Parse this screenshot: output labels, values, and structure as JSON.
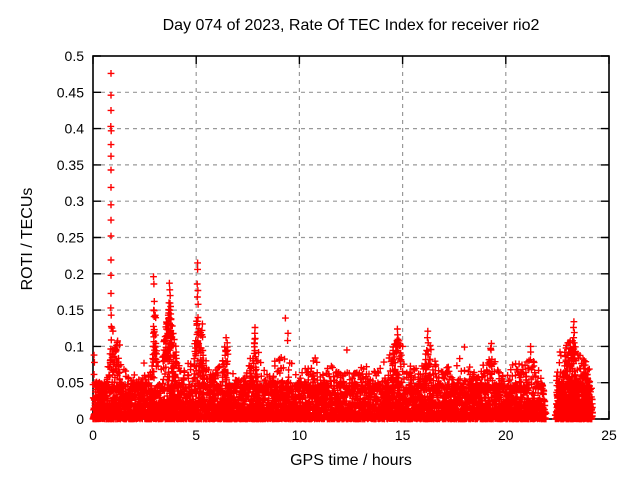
{
  "chart_data": {
    "type": "scatter",
    "title": "Day 074 of 2023, Rate Of TEC Index for receiver rio2",
    "xlabel": "GPS time / hours",
    "ylabel": "ROTI / TECUs",
    "xlim": [
      0,
      25
    ],
    "ylim": [
      0,
      0.5
    ],
    "xticks": {
      "values": [
        0,
        5,
        10,
        15,
        20,
        25
      ],
      "labels": [
        "0",
        "5",
        "10",
        "15",
        "20",
        "25"
      ]
    },
    "yticks": {
      "values": [
        0,
        0.05,
        0.1,
        0.15,
        0.2,
        0.25,
        0.3,
        0.35,
        0.4,
        0.45,
        0.5
      ],
      "labels": [
        "0",
        "0.05",
        "0.1",
        "0.15",
        "0.2",
        "0.25",
        "0.3",
        "0.35",
        "0.4",
        "0.45",
        "0.5"
      ]
    },
    "grid": {
      "show": true,
      "color": "#999999",
      "style": "dashed"
    },
    "background": "#ffffff",
    "border_color": "#000000",
    "text_color": "#000000",
    "legend": "none",
    "series": [
      {
        "name": "ROTI",
        "color": "#ff0000",
        "marker": "plus",
        "marker_size": 7,
        "bin_hours": 0.05,
        "points_per_bin": 13,
        "density_profile": {
          "solid_below": 0.02,
          "mid_below": 0.045
        },
        "dense_regions": [
          {
            "from": 22.45,
            "to": 24.05,
            "factor": 1.7
          },
          {
            "from": 3.5,
            "to": 4.0,
            "factor": 1.3
          },
          {
            "from": 7.7,
            "to": 8.0,
            "factor": 1.3
          }
        ],
        "band_envelope": [
          [
            0,
            0.09
          ],
          [
            0.1,
            0.085
          ],
          [
            0.2,
            0.06
          ],
          [
            0.35,
            0.05
          ],
          [
            0.5,
            0.05
          ],
          [
            0.65,
            0.055
          ],
          [
            0.8,
            0.09
          ],
          [
            0.87,
            0.13
          ],
          [
            0.95,
            0.125
          ],
          [
            1.1,
            0.11
          ],
          [
            1.2,
            0.12
          ],
          [
            1.35,
            0.09
          ],
          [
            1.5,
            0.075
          ],
          [
            1.75,
            0.055
          ],
          [
            2,
            0.065
          ],
          [
            2.25,
            0.055
          ],
          [
            2.5,
            0.09
          ],
          [
            2.6,
            0.075
          ],
          [
            2.75,
            0.07
          ],
          [
            2.9,
            0.12
          ],
          [
            3,
            0.16
          ],
          [
            3.1,
            0.1
          ],
          [
            3.25,
            0.09
          ],
          [
            3.4,
            0.1
          ],
          [
            3.5,
            0.13
          ],
          [
            3.65,
            0.15
          ],
          [
            3.75,
            0.165
          ],
          [
            3.85,
            0.12
          ],
          [
            4,
            0.11
          ],
          [
            4.15,
            0.08
          ],
          [
            4.3,
            0.07
          ],
          [
            4.5,
            0.065
          ],
          [
            4.75,
            0.09
          ],
          [
            4.9,
            0.1
          ],
          [
            5.05,
            0.16
          ],
          [
            5.15,
            0.12
          ],
          [
            5.3,
            0.13
          ],
          [
            5.45,
            0.09
          ],
          [
            5.6,
            0.07
          ],
          [
            5.75,
            0.06
          ],
          [
            6,
            0.07
          ],
          [
            6.25,
            0.095
          ],
          [
            6.5,
            0.105
          ],
          [
            6.75,
            0.08
          ],
          [
            7,
            0.065
          ],
          [
            7.25,
            0.06
          ],
          [
            7.5,
            0.07
          ],
          [
            7.75,
            0.1
          ],
          [
            7.85,
            0.12
          ],
          [
            8,
            0.095
          ],
          [
            8.25,
            0.075
          ],
          [
            8.5,
            0.06
          ],
          [
            8.75,
            0.08
          ],
          [
            9,
            0.09
          ],
          [
            9.2,
            0.095
          ],
          [
            9.4,
            0.1
          ],
          [
            9.6,
            0.08
          ],
          [
            9.75,
            0.065
          ],
          [
            10,
            0.06
          ],
          [
            10.25,
            0.07
          ],
          [
            10.5,
            0.075
          ],
          [
            10.75,
            0.09
          ],
          [
            11,
            0.075
          ],
          [
            11.25,
            0.065
          ],
          [
            11.5,
            0.08
          ],
          [
            11.75,
            0.075
          ],
          [
            12,
            0.065
          ],
          [
            12.25,
            0.07
          ],
          [
            12.5,
            0.06
          ],
          [
            12.75,
            0.065
          ],
          [
            13,
            0.08
          ],
          [
            13.25,
            0.075
          ],
          [
            13.5,
            0.065
          ],
          [
            13.75,
            0.07
          ],
          [
            14,
            0.09
          ],
          [
            14.25,
            0.085
          ],
          [
            14.5,
            0.1
          ],
          [
            14.75,
            0.115
          ],
          [
            15,
            0.095
          ],
          [
            15.25,
            0.08
          ],
          [
            15.5,
            0.075
          ],
          [
            15.75,
            0.07
          ],
          [
            16,
            0.09
          ],
          [
            16.25,
            0.11
          ],
          [
            16.5,
            0.085
          ],
          [
            16.75,
            0.07
          ],
          [
            17,
            0.065
          ],
          [
            17.25,
            0.075
          ],
          [
            17.5,
            0.065
          ],
          [
            17.75,
            0.085
          ],
          [
            18,
            0.1
          ],
          [
            18.25,
            0.075
          ],
          [
            18.5,
            0.065
          ],
          [
            18.75,
            0.07
          ],
          [
            19,
            0.08
          ],
          [
            19.25,
            0.105
          ],
          [
            19.5,
            0.09
          ],
          [
            19.75,
            0.065
          ],
          [
            20,
            0.06
          ],
          [
            20.25,
            0.07
          ],
          [
            20.5,
            0.085
          ],
          [
            20.75,
            0.075
          ],
          [
            21,
            0.09
          ],
          [
            21.2,
            0.1
          ],
          [
            21.4,
            0.08
          ],
          [
            21.6,
            0.065
          ],
          [
            21.8,
            0.05
          ],
          [
            21.95,
            0
          ],
          [
            22.42,
            0
          ],
          [
            22.5,
            0.09
          ],
          [
            22.75,
            0.095
          ],
          [
            23,
            0.105
          ],
          [
            23.25,
            0.12
          ],
          [
            23.4,
            0.1
          ],
          [
            23.6,
            0.095
          ],
          [
            23.8,
            0.085
          ],
          [
            24,
            0.075
          ],
          [
            24.1,
            0.05
          ],
          [
            24.2,
            0.02
          ]
        ],
        "outliers": [
          [
            0.87,
            0.476
          ],
          [
            0.87,
            0.446
          ],
          [
            0.87,
            0.425
          ],
          [
            0.86,
            0.403
          ],
          [
            0.88,
            0.397
          ],
          [
            0.87,
            0.378
          ],
          [
            0.87,
            0.362
          ],
          [
            0.87,
            0.343
          ],
          [
            0.87,
            0.319
          ],
          [
            0.87,
            0.295
          ],
          [
            0.87,
            0.274
          ],
          [
            0.87,
            0.252
          ],
          [
            0.87,
            0.219
          ],
          [
            0.87,
            0.198
          ],
          [
            0.87,
            0.173
          ],
          [
            0.86,
            0.153
          ],
          [
            0.88,
            0.143
          ],
          [
            0.05,
            0.088
          ],
          [
            0.07,
            0.078
          ],
          [
            2.93,
            0.196
          ],
          [
            2.95,
            0.186
          ],
          [
            2.97,
            0.162
          ],
          [
            2.94,
            0.15
          ],
          [
            2.96,
            0.141
          ],
          [
            3.7,
            0.187
          ],
          [
            3.72,
            0.178
          ],
          [
            3.74,
            0.17
          ],
          [
            3.68,
            0.16
          ],
          [
            3.76,
            0.155
          ],
          [
            3.72,
            0.15
          ],
          [
            3.65,
            0.143
          ],
          [
            3.78,
            0.138
          ],
          [
            3.6,
            0.132
          ],
          [
            3.82,
            0.128
          ],
          [
            5.07,
            0.215
          ],
          [
            5.07,
            0.206
          ],
          [
            5.05,
            0.186
          ],
          [
            5.08,
            0.177
          ],
          [
            5.06,
            0.168
          ],
          [
            5.09,
            0.158
          ],
          [
            5.3,
            0.131
          ],
          [
            5.28,
            0.122
          ],
          [
            6.45,
            0.112
          ],
          [
            6.5,
            0.105
          ],
          [
            7.85,
            0.126
          ],
          [
            7.84,
            0.118
          ],
          [
            7.86,
            0.111
          ],
          [
            7.83,
            0.104
          ],
          [
            9.32,
            0.139
          ],
          [
            9.45,
            0.118
          ],
          [
            9.43,
            0.108
          ],
          [
            12.3,
            0.095
          ],
          [
            14.75,
            0.124
          ],
          [
            14.76,
            0.116
          ],
          [
            14.73,
            0.108
          ],
          [
            15,
            0.1
          ],
          [
            16.22,
            0.121
          ],
          [
            16.2,
            0.112
          ],
          [
            16.24,
            0.105
          ],
          [
            18,
            0.099
          ],
          [
            19.3,
            0.104
          ],
          [
            21.2,
            0.1
          ],
          [
            23.3,
            0.134
          ],
          [
            23.28,
            0.126
          ],
          [
            23.32,
            0.119
          ],
          [
            23.29,
            0.112
          ],
          [
            23.31,
            0.105
          ]
        ]
      }
    ]
  }
}
